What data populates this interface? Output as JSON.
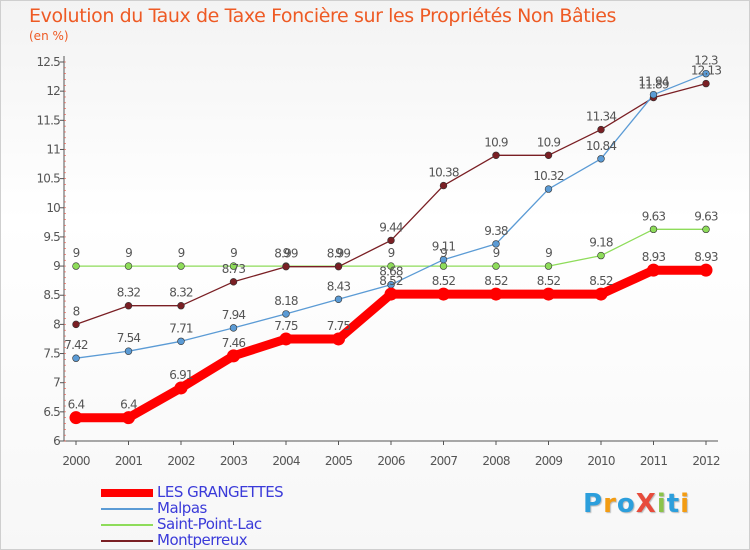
{
  "header": {
    "title": "Evolution du Taux de Taxe Foncière sur les Propriétés Non Bâties",
    "unit": "(en %)"
  },
  "brand": {
    "text": "ProXiti",
    "colors": [
      "#2c9fdc",
      "#f39c12",
      "#2c9fdc",
      "#e74c3c",
      "#8bc34a",
      "#2c9fdc",
      "#f39c12"
    ]
  },
  "chart_data": {
    "type": "line",
    "title": "Evolution du Taux de Taxe Foncière sur les Propriétés Non Bâties",
    "ylabel": "(en %)",
    "xlabel": "",
    "x": [
      "2000",
      "2001",
      "2002",
      "2003",
      "2004",
      "2005",
      "2006",
      "2007",
      "2008",
      "2009",
      "2010",
      "2011",
      "2012"
    ],
    "ylim": [
      6,
      12.5
    ],
    "yticks": [
      "6",
      "6.5",
      "7",
      "7.5",
      "8",
      "8.5",
      "9",
      "9.5",
      "10",
      "10.5",
      "11",
      "11.5",
      "12",
      "12.5"
    ],
    "grid": false,
    "legend_position": "bottom-left",
    "series": [
      {
        "name": "LES GRANGETTES",
        "color": "#ff0000",
        "values": [
          6.4,
          6.4,
          6.91,
          7.46,
          7.75,
          7.75,
          8.52,
          8.52,
          8.52,
          8.52,
          8.52,
          8.93,
          8.93
        ],
        "labels": [
          "6.4",
          "6.4",
          "6.91",
          "7.46",
          "7.75",
          "7.75",
          "8.52",
          "8.52",
          "8.52",
          "8.52",
          "8.52",
          "8.93",
          "8.93"
        ]
      },
      {
        "name": "Malpas",
        "color": "#5b9bd5",
        "values": [
          7.42,
          7.54,
          7.71,
          7.94,
          8.18,
          8.43,
          8.68,
          9.11,
          9.38,
          10.32,
          10.84,
          11.94,
          12.3
        ],
        "labels": [
          "7.42",
          "7.54",
          "7.71",
          "7.94",
          "8.18",
          "8.43",
          "8.68",
          "9.11",
          "9.38",
          "10.32",
          "10.84",
          "11.94",
          "12.3"
        ]
      },
      {
        "name": "Saint-Point-Lac",
        "color": "#8edc5a",
        "values": [
          9,
          9,
          9,
          9,
          9,
          9,
          9,
          9,
          9,
          9,
          9.18,
          9.63,
          9.63
        ],
        "labels": [
          "9",
          "9",
          "9",
          "9",
          "9",
          "9",
          "9",
          "9",
          "9",
          "9",
          "9.18",
          "9.63",
          "9.63"
        ]
      },
      {
        "name": "Montperreux",
        "color": "#7a1f24",
        "values": [
          8,
          8.32,
          8.32,
          8.73,
          8.99,
          8.99,
          9.44,
          10.38,
          10.9,
          10.9,
          11.34,
          11.89,
          12.13
        ],
        "labels": [
          "8",
          "8.32",
          "8.32",
          "8.73",
          "8.99",
          "8.99",
          "9.44",
          "10.38",
          "10.9",
          "10.9",
          "11.34",
          "11.89",
          "12.13"
        ]
      }
    ]
  }
}
